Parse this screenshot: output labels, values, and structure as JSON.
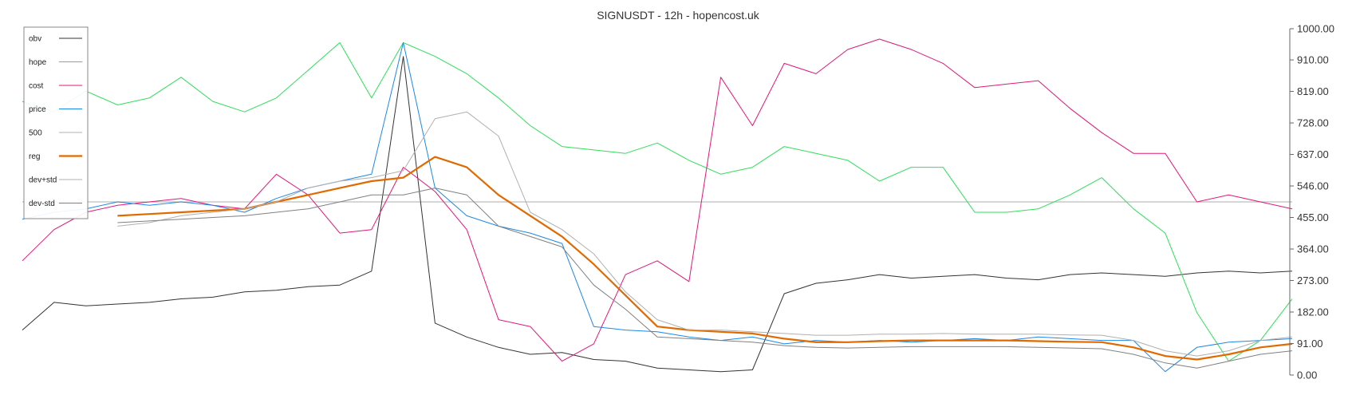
{
  "chart_data": {
    "type": "line",
    "title": "SIGNUSDT - 12h - hopencost.uk",
    "ylim": [
      0,
      1000
    ],
    "y_ticks": [
      "0.00",
      "91.00",
      "182.00",
      "273.00",
      "364.00",
      "455.00",
      "546.00",
      "637.00",
      "728.00",
      "819.00",
      "910.00",
      "1000.00"
    ],
    "y_axis_side": "right",
    "grid": false,
    "legend_placement": "top-left",
    "horizontal_line": 500,
    "x": [
      0,
      5,
      10,
      15,
      20,
      25,
      30,
      35,
      40,
      45,
      50,
      55,
      60,
      65,
      70,
      75,
      80,
      85,
      90,
      95,
      100,
      105,
      110,
      115,
      120,
      125,
      130,
      135,
      140,
      145,
      150,
      155,
      160,
      165,
      170,
      175,
      180,
      185,
      190,
      195,
      200
    ],
    "series": [
      {
        "name": "obv",
        "color": "#333333",
        "width": 1,
        "values": [
          130,
          210,
          200,
          205,
          210,
          220,
          225,
          240,
          245,
          255,
          260,
          300,
          920,
          150,
          110,
          80,
          60,
          65,
          45,
          40,
          20,
          15,
          10,
          15,
          235,
          265,
          275,
          290,
          280,
          285,
          290,
          280,
          275,
          290,
          295,
          290,
          285,
          295,
          300,
          295,
          300
        ]
      },
      {
        "name": "hope",
        "color": "#2ee05a",
        "width": 1,
        "values": [
          790,
          760,
          820,
          780,
          800,
          860,
          790,
          760,
          800,
          880,
          960,
          800,
          960,
          920,
          870,
          800,
          720,
          660,
          650,
          640,
          670,
          620,
          580,
          600,
          660,
          640,
          620,
          560,
          600,
          600,
          470,
          470,
          480,
          520,
          570,
          480,
          410,
          180,
          40,
          100,
          220
        ]
      },
      {
        "name": "cost",
        "color": "#e0187a",
        "width": 1,
        "values": [
          330,
          420,
          470,
          490,
          500,
          510,
          490,
          480,
          580,
          520,
          410,
          420,
          600,
          530,
          420,
          160,
          140,
          40,
          90,
          290,
          330,
          270,
          860,
          720,
          900,
          870,
          940,
          970,
          940,
          900,
          830,
          840,
          850,
          770,
          700,
          640,
          640,
          500,
          520,
          500,
          480
        ]
      },
      {
        "name": "price",
        "color": "#1e88e5",
        "width": 1,
        "values": [
          450,
          470,
          480,
          500,
          490,
          500,
          490,
          470,
          510,
          540,
          560,
          580,
          960,
          540,
          460,
          430,
          410,
          380,
          140,
          130,
          125,
          110,
          100,
          110,
          90,
          100,
          95,
          100,
          95,
          100,
          105,
          100,
          110,
          105,
          100,
          100,
          10,
          80,
          95,
          100,
          105
        ]
      },
      {
        "name": "500",
        "color": "#b0b0b0",
        "width": 1,
        "values": [
          null,
          null,
          null,
          null,
          null,
          null,
          null,
          null,
          null,
          null,
          null,
          null,
          null,
          null,
          null,
          null,
          null,
          null,
          null,
          null,
          null,
          null,
          null,
          null,
          null,
          null,
          null,
          null,
          null,
          null,
          null,
          null,
          null,
          null,
          null,
          null,
          null,
          null,
          null,
          null,
          null
        ]
      },
      {
        "name": "reg",
        "color": "#e06a00",
        "width": 2.2,
        "values": [
          null,
          null,
          null,
          460,
          465,
          470,
          475,
          480,
          500,
          520,
          540,
          560,
          570,
          630,
          600,
          520,
          460,
          400,
          320,
          230,
          140,
          130,
          125,
          120,
          105,
          95,
          95,
          98,
          100,
          100,
          100,
          100,
          98,
          96,
          95,
          80,
          55,
          45,
          60,
          80,
          90
        ]
      },
      {
        "name": "dev+std",
        "color": "#b0b0b0",
        "width": 1,
        "values": [
          null,
          null,
          null,
          430,
          440,
          460,
          470,
          480,
          500,
          540,
          560,
          570,
          590,
          740,
          760,
          690,
          470,
          420,
          350,
          240,
          160,
          130,
          130,
          125,
          120,
          115,
          115,
          118,
          118,
          120,
          118,
          118,
          118,
          116,
          115,
          100,
          70,
          55,
          70,
          100,
          110
        ]
      },
      {
        "name": "dev-std",
        "color": "#808080",
        "width": 1,
        "values": [
          null,
          null,
          null,
          440,
          445,
          450,
          455,
          460,
          470,
          480,
          500,
          520,
          520,
          540,
          520,
          430,
          400,
          370,
          260,
          190,
          110,
          105,
          100,
          95,
          85,
          80,
          78,
          80,
          82,
          82,
          82,
          82,
          80,
          78,
          76,
          60,
          35,
          20,
          40,
          60,
          70
        ]
      }
    ],
    "legend": [
      "obv",
      "hope",
      "cost",
      "price",
      "500",
      "reg",
      "dev+std",
      "dev-std"
    ]
  }
}
